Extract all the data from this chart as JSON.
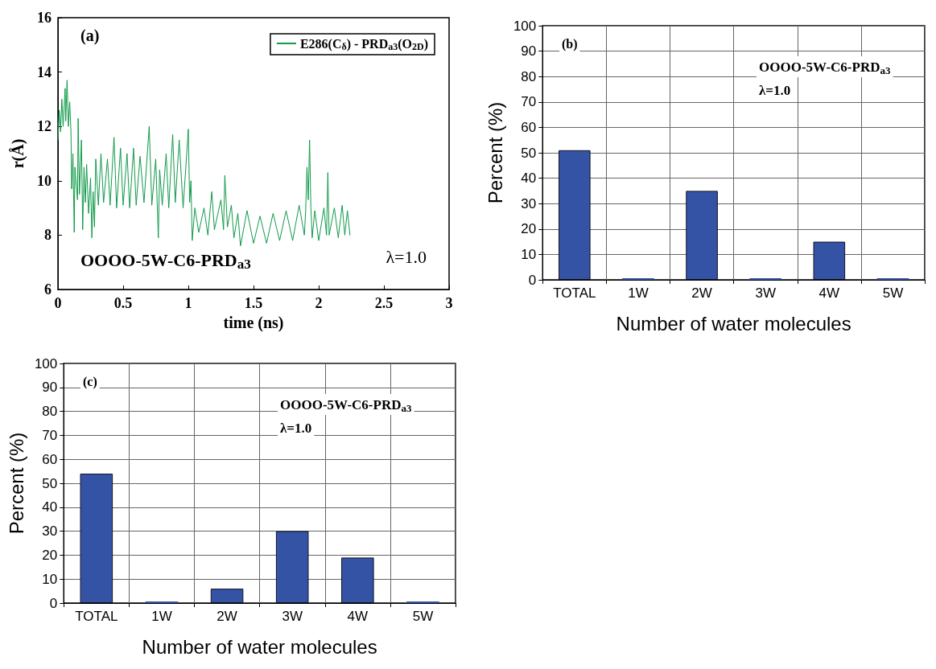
{
  "chart_data": [
    {
      "type": "line",
      "xlabel": "time (ns)",
      "ylabel": "r(Å)",
      "xlim": [
        0,
        3
      ],
      "xticks": [
        0,
        0.5,
        1,
        1.5,
        2,
        2.5,
        3
      ],
      "ylim": [
        6,
        16
      ],
      "yticks": [
        6,
        8,
        10,
        12,
        14,
        16
      ],
      "grid": false,
      "legend": "top right",
      "marker": "none",
      "line_style": "solid",
      "annotations": [
        "(a)",
        "OOOO-5W-C6-PRD$_{a3}$",
        "λ=1.0"
      ],
      "series": [
        {
          "name": "E286(C$_{δ}$) - PRD$_{a3}$(O$_{2D}$)",
          "color": "#109a4a",
          "x": [
            0,
            0.01,
            0.02,
            0.03,
            0.04,
            0.055,
            0.06,
            0.07,
            0.08,
            0.09,
            0.1,
            0.105,
            0.115,
            0.12,
            0.125,
            0.13,
            0.15,
            0.155,
            0.165,
            0.18,
            0.19,
            0.2,
            0.21,
            0.22,
            0.235,
            0.25,
            0.26,
            0.27,
            0.28,
            0.29,
            0.31,
            0.33,
            0.35,
            0.38,
            0.4,
            0.43,
            0.45,
            0.48,
            0.5,
            0.53,
            0.55,
            0.58,
            0.6,
            0.63,
            0.66,
            0.7,
            0.72,
            0.75,
            0.77,
            0.78,
            0.8,
            0.83,
            0.85,
            0.88,
            0.9,
            0.93,
            0.96,
            1.0,
            1.01,
            1.02,
            1.03,
            1.05,
            1.08,
            1.12,
            1.15,
            1.18,
            1.2,
            1.25,
            1.27,
            1.28,
            1.3,
            1.33,
            1.35,
            1.38,
            1.4,
            1.45,
            1.5,
            1.55,
            1.6,
            1.65,
            1.7,
            1.75,
            1.8,
            1.85,
            1.89,
            1.9,
            1.91,
            1.92,
            1.93,
            1.94,
            1.95,
            1.97,
            2.0,
            2.04,
            2.06,
            2.07,
            2.08,
            2.12,
            2.15,
            2.18,
            2.2,
            2.22,
            2.24
          ],
          "values": [
            11.5,
            12.6,
            11.8,
            13.0,
            12.0,
            13.4,
            12.2,
            13.7,
            12.0,
            12.9,
            11.8,
            9.7,
            11.0,
            9.5,
            8.1,
            10.5,
            9.3,
            12.3,
            9.5,
            11.5,
            8.2,
            10.5,
            9.2,
            10.6,
            8.8,
            10.1,
            7.9,
            9.6,
            8.3,
            10.8,
            9.1,
            11.0,
            9.2,
            10.8,
            9.1,
            11.6,
            9.0,
            11.2,
            9.1,
            11.0,
            9.0,
            11.2,
            9.1,
            10.9,
            9.2,
            12.0,
            9.1,
            10.8,
            7.9,
            10.4,
            9.1,
            11.0,
            9.0,
            11.7,
            9.2,
            11.5,
            9.0,
            11.9,
            9.2,
            10.0,
            7.8,
            9.0,
            8.1,
            9.0,
            8.0,
            9.6,
            8.2,
            9.3,
            8.2,
            10.2,
            8.3,
            9.1,
            7.9,
            8.8,
            7.6,
            8.9,
            7.7,
            8.7,
            7.7,
            8.8,
            7.8,
            8.9,
            7.8,
            9.1,
            8.0,
            8.9,
            10.5,
            9.3,
            11.5,
            9.0,
            7.9,
            8.9,
            7.8,
            9.0,
            8.0,
            10.3,
            8.0,
            9.0,
            7.9,
            9.1,
            8.0,
            8.9,
            8.0
          ]
        }
      ]
    },
    {
      "type": "bar",
      "xlabel": "Number of water molecules",
      "ylabel": "Percent (%)",
      "categories": [
        "TOTAL",
        "1W",
        "2W",
        "3W",
        "4W",
        "5W"
      ],
      "ylim": [
        0,
        100
      ],
      "yticks": [
        0,
        10,
        20,
        30,
        40,
        50,
        60,
        70,
        80,
        90,
        100
      ],
      "grid": true,
      "annotations": [
        "(b)",
        "OOOO-5W-C6-PRD$_{a3}$",
        "λ=1.0"
      ],
      "series": [
        {
          "color": "#3553a5",
          "values": [
            51,
            0,
            35,
            0,
            15,
            0
          ]
        }
      ]
    },
    {
      "type": "bar",
      "xlabel": "Number of water molecules",
      "ylabel": "Percent (%)",
      "categories": [
        "TOTAL",
        "1W",
        "2W",
        "3W",
        "4W",
        "5W"
      ],
      "ylim": [
        0,
        100
      ],
      "yticks": [
        0,
        10,
        20,
        30,
        40,
        50,
        60,
        70,
        80,
        90,
        100
      ],
      "grid": true,
      "annotations": [
        "(c)",
        "OOOO-5W-C6-PRD$_{a3}$",
        "λ=1.0"
      ],
      "series": [
        {
          "color": "#3553a5",
          "values": [
            54,
            0,
            6,
            30,
            19,
            0
          ]
        }
      ]
    }
  ]
}
